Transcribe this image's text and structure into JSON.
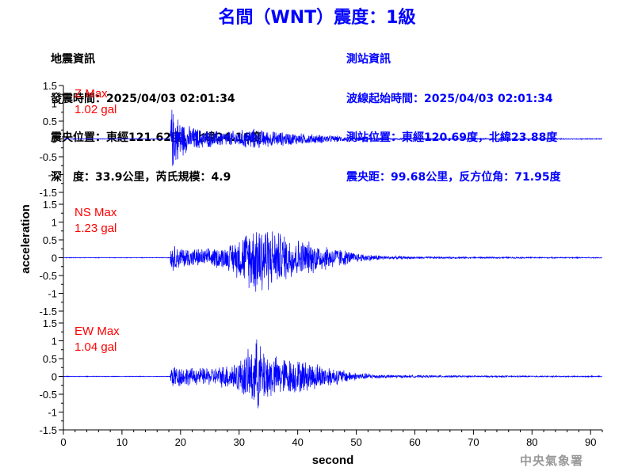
{
  "title": "名間（WNT）震度：1級",
  "quake_info": {
    "heading": "地震資訊",
    "origin_time": "發震時間：2025/04/03 02:01:34",
    "epicenter": "震央位置：東經121.62度，北緯24.16度",
    "depth_mag": "深　度：33.9公里，芮氏規模：4.9"
  },
  "station_info": {
    "heading": "測站資訊",
    "wave_start": "波線起始時間：2025/04/03 02:01:34",
    "location": "測站位置：東經120.69度，北緯23.88度",
    "distance": "震央距：99.68公里，反方位角：71.95度"
  },
  "watermark": "中央氣象署",
  "colors": {
    "trace": "#0000ff",
    "max_label": "#ff0000",
    "title": "#0000ff"
  },
  "chart_data": {
    "type": "line",
    "xlabel": "second",
    "ylabel": "acceleration",
    "xlim": [
      0,
      92
    ],
    "xticks": [
      0,
      10,
      20,
      30,
      40,
      50,
      60,
      70,
      80,
      90
    ],
    "ylim": [
      -1.5,
      1.5
    ],
    "yticks": [
      1.5,
      1,
      0.5,
      0,
      -0.5,
      -1,
      -1.5
    ],
    "grid": false,
    "panels": [
      {
        "name": "Z",
        "max_label": "Z Max",
        "max_value": "1.02 gal",
        "peak": 1.02,
        "onset": 18.3,
        "envelope": [
          [
            0,
            0.01
          ],
          [
            18.2,
            0.01
          ],
          [
            18.4,
            1.0
          ],
          [
            19.5,
            0.72
          ],
          [
            21,
            0.42
          ],
          [
            24,
            0.28
          ],
          [
            27,
            0.24
          ],
          [
            30,
            0.26
          ],
          [
            32,
            0.33
          ],
          [
            35,
            0.25
          ],
          [
            40,
            0.18
          ],
          [
            45,
            0.12
          ],
          [
            50,
            0.06
          ],
          [
            55,
            0.035
          ],
          [
            60,
            0.025
          ],
          [
            70,
            0.02
          ],
          [
            92,
            0.015
          ]
        ]
      },
      {
        "name": "NS",
        "max_label": "NS Max",
        "max_value": "1.23 gal",
        "peak": 1.23,
        "onset": 18.3,
        "envelope": [
          [
            0,
            0.01
          ],
          [
            18.2,
            0.01
          ],
          [
            18.4,
            0.42
          ],
          [
            20,
            0.32
          ],
          [
            24,
            0.27
          ],
          [
            28,
            0.35
          ],
          [
            31,
            0.8
          ],
          [
            33.5,
            1.23
          ],
          [
            36,
            0.85
          ],
          [
            40,
            0.58
          ],
          [
            44,
            0.42
          ],
          [
            47,
            0.3
          ],
          [
            50,
            0.14
          ],
          [
            55,
            0.06
          ],
          [
            60,
            0.035
          ],
          [
            70,
            0.025
          ],
          [
            92,
            0.015
          ]
        ]
      },
      {
        "name": "EW",
        "max_label": "EW Max",
        "max_value": "1.04 gal",
        "peak": 1.04,
        "onset": 18.3,
        "envelope": [
          [
            0,
            0.01
          ],
          [
            18.2,
            0.01
          ],
          [
            18.4,
            0.38
          ],
          [
            22,
            0.26
          ],
          [
            26,
            0.28
          ],
          [
            30,
            0.5
          ],
          [
            33,
            1.04
          ],
          [
            36,
            0.62
          ],
          [
            40,
            0.52
          ],
          [
            43,
            0.42
          ],
          [
            46,
            0.28
          ],
          [
            50,
            0.12
          ],
          [
            55,
            0.05
          ],
          [
            60,
            0.035
          ],
          [
            70,
            0.025
          ],
          [
            92,
            0.015
          ]
        ]
      }
    ]
  }
}
